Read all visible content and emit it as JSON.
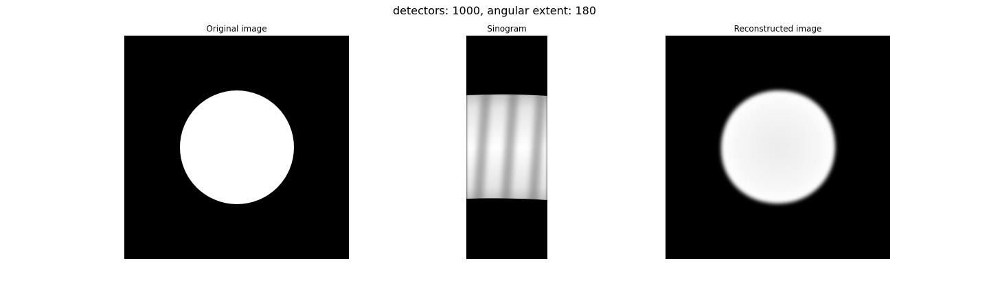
{
  "figure": {
    "title": "detectors: 1000, angular extent: 180"
  },
  "panels": [
    {
      "title": "Original image"
    },
    {
      "title": "Sinogram"
    },
    {
      "title": "Reconstructed image"
    }
  ],
  "colors": {
    "background": "#000000",
    "foreground": "#ffffff"
  }
}
